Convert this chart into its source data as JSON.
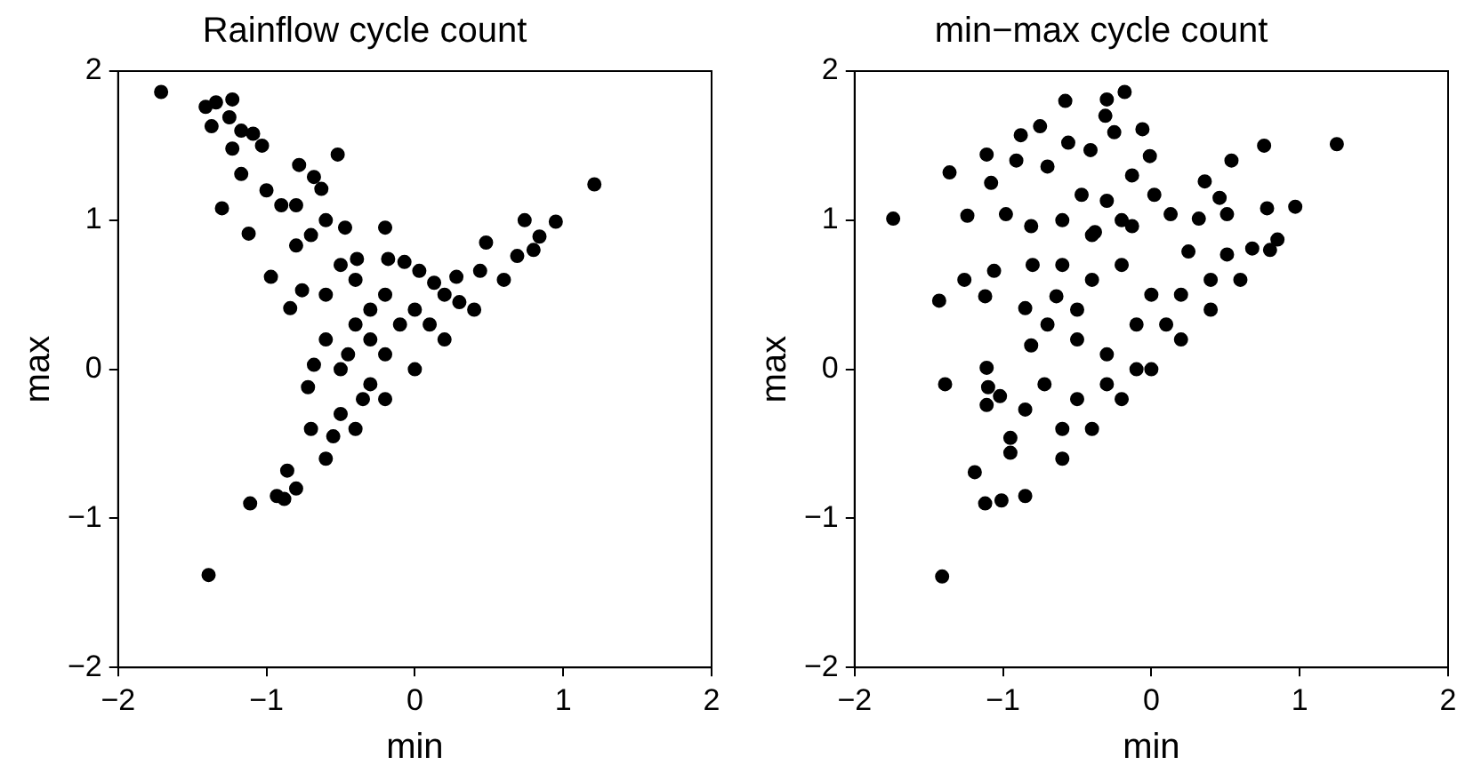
{
  "chart_data": [
    {
      "type": "scatter",
      "title": "Rainflow cycle count",
      "xlabel": "min",
      "ylabel": "max",
      "color": "#000000",
      "marker": "circle",
      "grid": false,
      "xlim": [
        -2,
        2
      ],
      "ylim": [
        -2,
        2
      ],
      "xticks": [
        -2,
        -1,
        0,
        1,
        2
      ],
      "yticks": [
        -2,
        -1,
        0,
        1,
        2
      ],
      "x": [
        -1.71,
        -1.41,
        -1.34,
        -1.23,
        -1.37,
        -1.25,
        -1.17,
        -1.09,
        -1.03,
        -1.23,
        -1.17,
        -1.3,
        -0.52,
        1.21,
        0.95,
        0.74,
        -0.2,
        -1.11,
        -1.39,
        -0.88,
        -0.93,
        -0.86,
        -0.72,
        -0.68,
        -0.8,
        -0.97,
        -0.76,
        -0.84,
        -1.12,
        -0.78,
        -0.68,
        -0.63,
        -0.47,
        -0.39,
        -0.18,
        -0.07,
        0.03,
        0.13,
        0.28,
        0.44,
        0.48,
        0.69,
        0.84,
        -0.8,
        -0.6,
        -0.4,
        -0.2,
        0,
        0.2,
        0.4,
        0.6,
        0.8,
        -0.5,
        -0.4,
        -0.3,
        -0.2,
        -0.1,
        -0.6,
        -0.5,
        -0.7,
        -0.9,
        -0.6,
        -0.5,
        -0.7,
        -0.3,
        0.1,
        0.3,
        -0.2,
        -0.4,
        -0.6,
        -1.0,
        -0.8,
        -0.3,
        0,
        0.2,
        -0.45,
        -0.35,
        -0.55
      ],
      "values": [
        1.86,
        1.76,
        1.79,
        1.81,
        1.63,
        1.69,
        1.6,
        1.58,
        1.5,
        1.48,
        1.31,
        1.08,
        1.44,
        1.24,
        0.99,
        1.0,
        0.95,
        -0.9,
        -1.38,
        -0.87,
        -0.85,
        -0.68,
        -0.12,
        0.03,
        0.83,
        0.62,
        0.53,
        0.41,
        0.91,
        1.37,
        1.29,
        1.21,
        0.95,
        0.74,
        0.74,
        0.72,
        0.66,
        0.58,
        0.62,
        0.66,
        0.85,
        0.76,
        0.89,
        -0.8,
        -0.6,
        -0.4,
        -0.2,
        0,
        0.2,
        0.4,
        0.6,
        0.8,
        0,
        0.3,
        0.2,
        0.1,
        0.3,
        0.5,
        0.7,
        0.9,
        1.1,
        0.2,
        -0.3,
        -0.4,
        -0.1,
        0.3,
        0.45,
        0.5,
        0.6,
        1.0,
        1.2,
        1.1,
        0.4,
        0.4,
        0.5,
        0.1,
        -0.2,
        -0.45
      ]
    },
    {
      "type": "scatter",
      "title": "min−max cycle count",
      "xlabel": "min",
      "ylabel": "max",
      "color": "#000000",
      "marker": "circle",
      "grid": false,
      "xlim": [
        -2,
        2
      ],
      "ylim": [
        -2,
        2
      ],
      "xticks": [
        -2,
        -1,
        0,
        1,
        2
      ],
      "yticks": [
        -2,
        -1,
        0,
        1,
        2
      ],
      "x": [
        -1.74,
        -1.43,
        -1.39,
        -1.41,
        -1.12,
        -1.19,
        -1.01,
        -1.36,
        -1.11,
        -0.88,
        -0.75,
        -0.58,
        -0.3,
        -0.18,
        -0.31,
        -0.25,
        -0.06,
        -0.01,
        -0.13,
        -0.41,
        -0.56,
        -0.7,
        -0.91,
        -1.08,
        -1.24,
        -1.26,
        -1.12,
        -1.11,
        -1.1,
        -1.11,
        -0.95,
        -0.95,
        -1.02,
        -0.85,
        0.54,
        0.76,
        1.25,
        0.97,
        0.78,
        0.36,
        0.46,
        0.51,
        0.32,
        0.13,
        0.02,
        -0.3,
        -0.47,
        0.85,
        0.68,
        0.51,
        0.25,
        -0.13,
        -0.38,
        -0.81,
        -0.98,
        -1.06,
        -0.85,
        -0.64,
        -0.81,
        -0.72,
        -0.85,
        -0.6,
        -0.4,
        -0.2,
        0,
        0.2,
        0.4,
        0.6,
        0.8,
        -0.5,
        -0.3,
        -0.1,
        -0.4,
        -0.2,
        0,
        0.2,
        -0.6,
        -0.7,
        -0.5,
        -0.3,
        -0.6,
        0.1,
        0.4,
        -0.1,
        -0.4,
        -0.2,
        -0.6,
        -0.8,
        -0.5
      ],
      "values": [
        1.01,
        0.46,
        -0.1,
        -1.39,
        -0.9,
        -0.69,
        -0.88,
        1.32,
        1.44,
        1.57,
        1.63,
        1.8,
        1.81,
        1.86,
        1.7,
        1.59,
        1.61,
        1.43,
        1.3,
        1.47,
        1.52,
        1.36,
        1.4,
        1.25,
        1.03,
        0.6,
        0.49,
        0.01,
        -0.12,
        -0.24,
        -0.46,
        -0.56,
        -0.18,
        -0.27,
        1.4,
        1.5,
        1.51,
        1.09,
        1.08,
        1.26,
        1.15,
        1.04,
        1.01,
        1.04,
        1.17,
        1.13,
        1.17,
        0.87,
        0.81,
        0.77,
        0.79,
        0.96,
        0.92,
        0.96,
        1.04,
        0.66,
        0.41,
        0.49,
        0.16,
        -0.1,
        -0.85,
        -0.6,
        -0.4,
        -0.2,
        0,
        0.2,
        0.4,
        0.6,
        0.8,
        0.2,
        0.1,
        0.3,
        0.6,
        0.7,
        0.5,
        0.5,
        0.7,
        0.3,
        -0.2,
        -0.1,
        -0.4,
        0.3,
        0.6,
        0,
        0.9,
        1.0,
        1.0,
        0.7,
        0.4
      ]
    }
  ]
}
